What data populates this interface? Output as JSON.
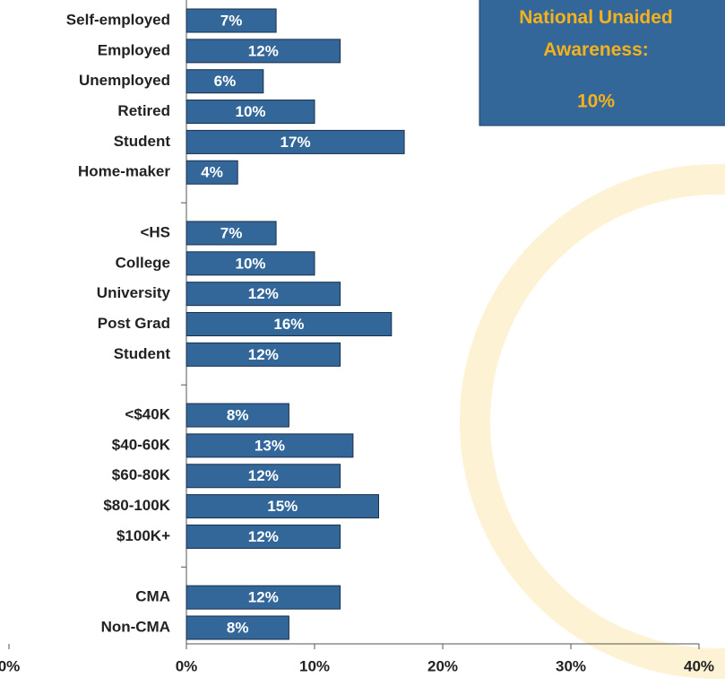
{
  "chart_data": {
    "type": "bar",
    "orientation": "horizontal",
    "categories": [
      "Self-employed",
      "Employed",
      "Unemployed",
      "Retired",
      "Student",
      "Home-maker",
      null,
      "<HS",
      "College",
      "University",
      "Post Grad",
      "Student",
      null,
      "<$40K",
      "$40-60K",
      "$60-80K",
      "$80-100K",
      "$100K+",
      null,
      "CMA",
      "Non-CMA"
    ],
    "values": [
      7,
      12,
      6,
      10,
      17,
      4,
      null,
      7,
      10,
      12,
      16,
      12,
      null,
      8,
      13,
      12,
      15,
      12,
      null,
      12,
      8
    ],
    "value_labels": [
      "7%",
      "12%",
      "6%",
      "10%",
      "17%",
      "4%",
      null,
      "7%",
      "10%",
      "12%",
      "16%",
      "12%",
      null,
      "8%",
      "13%",
      "12%",
      "15%",
      "12%",
      null,
      "12%",
      "8%"
    ],
    "color": "#336699",
    "xlim": [
      0,
      40
    ],
    "xticks": [
      {
        "value": 0,
        "label": "0%"
      },
      {
        "value": 10,
        "label": "10%"
      },
      {
        "value": 20,
        "label": "20%"
      },
      {
        "value": 30,
        "label": "30%"
      },
      {
        "value": 40,
        "label": "40%"
      }
    ],
    "left_tick": {
      "value": 0,
      "label": "0%"
    },
    "annotation": {
      "title": "National Unaided Awareness:",
      "value": "10%"
    }
  }
}
